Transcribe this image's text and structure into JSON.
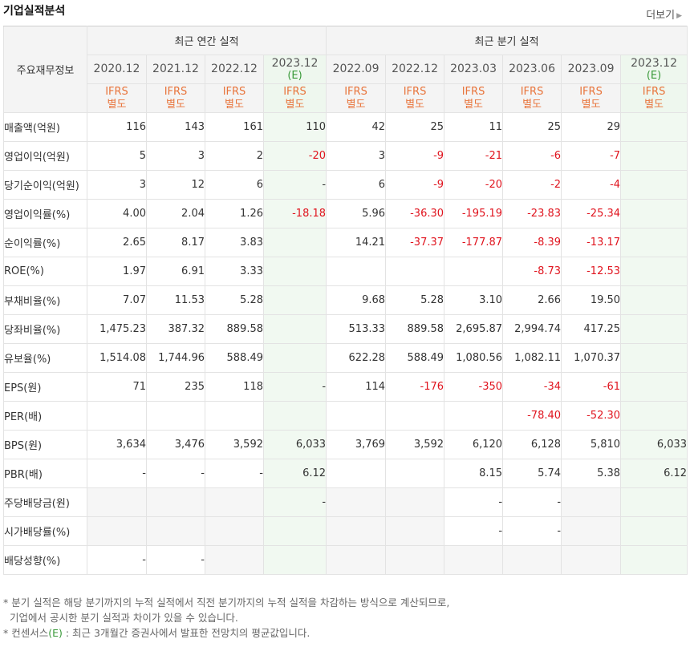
{
  "header": {
    "title": "기업실적분석",
    "more_label": "더보기"
  },
  "table": {
    "corner_label": "주요재무정보",
    "groups": {
      "annual": "최근 연간 실적",
      "quarter": "최근 분기 실적"
    },
    "periods": [
      {
        "label": "2020.12",
        "est": ""
      },
      {
        "label": "2021.12",
        "est": ""
      },
      {
        "label": "2022.12",
        "est": ""
      },
      {
        "label": "2023.12",
        "est": "(E)"
      },
      {
        "label": "2022.09",
        "est": ""
      },
      {
        "label": "2022.12",
        "est": ""
      },
      {
        "label": "2023.03",
        "est": ""
      },
      {
        "label": "2023.06",
        "est": ""
      },
      {
        "label": "2023.09",
        "est": ""
      },
      {
        "label": "2023.12",
        "est": "(E)"
      }
    ],
    "ifrs_line1": "IFRS",
    "ifrs_line2": "별도",
    "rows": [
      {
        "label": "매출액(억원)",
        "values": [
          "116",
          "143",
          "161",
          "110",
          "42",
          "25",
          "11",
          "25",
          "29",
          ""
        ]
      },
      {
        "label": "영업이익(억원)",
        "values": [
          "5",
          "3",
          "2",
          "-20",
          "3",
          "-9",
          "-21",
          "-6",
          "-7",
          ""
        ]
      },
      {
        "label": "당기순이익(억원)",
        "values": [
          "3",
          "12",
          "6",
          "-",
          "6",
          "-9",
          "-20",
          "-2",
          "-4",
          ""
        ]
      },
      {
        "label": "영업이익률(%)",
        "values": [
          "4.00",
          "2.04",
          "1.26",
          "-18.18",
          "5.96",
          "-36.30",
          "-195.19",
          "-23.83",
          "-25.34",
          ""
        ]
      },
      {
        "label": "순이익률(%)",
        "values": [
          "2.65",
          "8.17",
          "3.83",
          "",
          "14.21",
          "-37.37",
          "-177.87",
          "-8.39",
          "-13.17",
          ""
        ]
      },
      {
        "label": "ROE(%)",
        "values": [
          "1.97",
          "6.91",
          "3.33",
          "",
          "",
          "",
          "",
          "-8.73",
          "-12.53",
          ""
        ]
      },
      {
        "label": "부채비율(%)",
        "values": [
          "7.07",
          "11.53",
          "5.28",
          "",
          "9.68",
          "5.28",
          "3.10",
          "2.66",
          "19.50",
          ""
        ]
      },
      {
        "label": "당좌비율(%)",
        "values": [
          "1,475.23",
          "387.32",
          "889.58",
          "",
          "513.33",
          "889.58",
          "2,695.87",
          "2,994.74",
          "417.25",
          ""
        ]
      },
      {
        "label": "유보율(%)",
        "values": [
          "1,514.08",
          "1,744.96",
          "588.49",
          "",
          "622.28",
          "588.49",
          "1,080.56",
          "1,082.11",
          "1,070.37",
          ""
        ]
      },
      {
        "label": "EPS(원)",
        "values": [
          "71",
          "235",
          "118",
          "-",
          "114",
          "-176",
          "-350",
          "-34",
          "-61",
          ""
        ]
      },
      {
        "label": "PER(배)",
        "values": [
          "",
          "",
          "",
          "",
          "",
          "",
          "",
          "-78.40",
          "-52.30",
          ""
        ]
      },
      {
        "label": "BPS(원)",
        "values": [
          "3,634",
          "3,476",
          "3,592",
          "6,033",
          "3,769",
          "3,592",
          "6,120",
          "6,128",
          "5,810",
          "6,033"
        ]
      },
      {
        "label": "PBR(배)",
        "values": [
          "-",
          "-",
          "-",
          "6.12",
          "",
          "",
          "8.15",
          "5.74",
          "5.38",
          "6.12"
        ]
      },
      {
        "label": "주당배당금(원)",
        "values": [
          "",
          "",
          "",
          "-",
          "",
          "",
          "-",
          "-",
          "",
          ""
        ]
      },
      {
        "label": "시가배당률(%)",
        "values": [
          "",
          "",
          "",
          "",
          "",
          "",
          "-",
          "-",
          "",
          ""
        ]
      },
      {
        "label": "배당성향(%)",
        "values": [
          "-",
          "-",
          "",
          "",
          "",
          "",
          "",
          "",
          "",
          ""
        ]
      }
    ]
  },
  "notes": {
    "line1": "* 분기 실적은 해당 분기까지의 누적 실적에서 직전 분기까지의 누적 실적을 차감하는 방식으로 계산되므로,",
    "line2": "기업에서 공시한 분기 실적과 차이가 있을 수 있습니다.",
    "line3_pre": "* 컨센서스",
    "line3_e": "(E)",
    "line3_post": " : 최근 3개월간 증권사에서 발표한 전망치의 평균값입니다."
  }
}
